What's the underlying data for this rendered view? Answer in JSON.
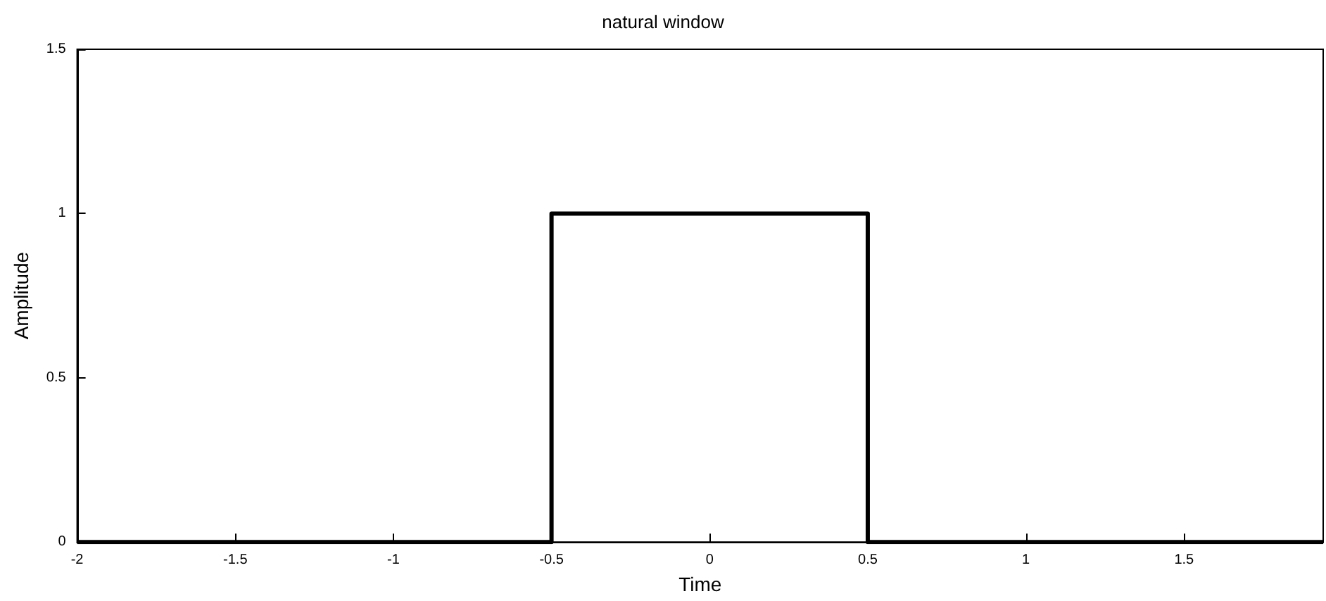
{
  "chart_data": {
    "type": "line",
    "title": "natural window",
    "xlabel": "Time",
    "ylabel": "Amplitude",
    "x": [
      -2,
      -0.5,
      -0.5,
      0.5,
      0.5,
      1.94
    ],
    "series": [
      {
        "color": "#000000",
        "values": [
          0,
          0,
          1,
          1,
          0,
          0
        ]
      }
    ],
    "xlim": [
      -2,
      1.94
    ],
    "xticks": [
      -2,
      -1.5,
      -1,
      -0.5,
      0,
      0.5,
      1,
      1.5
    ],
    "ylim": [
      0,
      1.5
    ],
    "yticks": [
      0,
      0.5,
      1,
      1.5
    ],
    "grid": false,
    "marker": "none",
    "line_style": "solid"
  }
}
